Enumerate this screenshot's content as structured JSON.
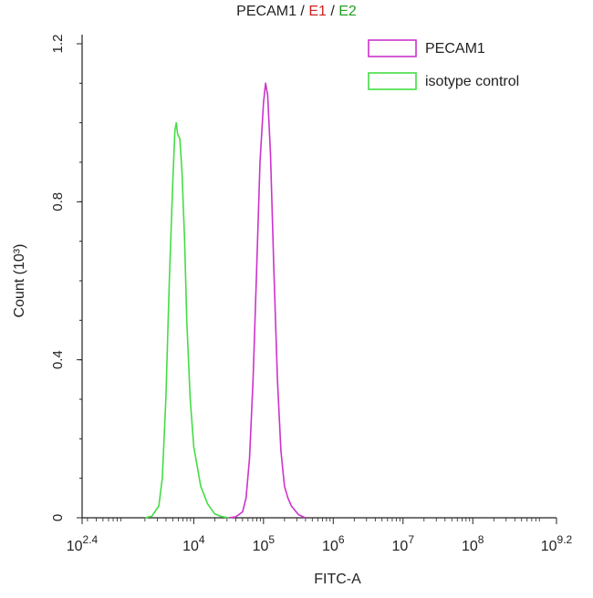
{
  "chart_data": {
    "type": "line",
    "title": {
      "main": "PECAM1",
      "sep1": " / ",
      "e1": "E1",
      "sep2": " / ",
      "e2": "E2"
    },
    "xlabel": "FITC-A",
    "ylabel": "Count (10³)",
    "x_scale": "log10",
    "xlim": [
      2.4,
      9.2
    ],
    "ylim": [
      0,
      1.2
    ],
    "x_ticks": [
      {
        "exp": 2.4,
        "base": "10",
        "sup": "2.4"
      },
      {
        "exp": 4,
        "base": "10",
        "sup": "4"
      },
      {
        "exp": 5,
        "base": "10",
        "sup": "5"
      },
      {
        "exp": 6,
        "base": "10",
        "sup": "6"
      },
      {
        "exp": 7,
        "base": "10",
        "sup": "7"
      },
      {
        "exp": 8,
        "base": "10",
        "sup": "8"
      },
      {
        "exp": 9.2,
        "base": "10",
        "sup": "9.2"
      }
    ],
    "y_ticks": [
      {
        "value": 0,
        "label": "0"
      },
      {
        "value": 0.4,
        "label": "0.4"
      },
      {
        "value": 0.8,
        "label": "0.8"
      },
      {
        "value": 1.2,
        "label": "1.2"
      }
    ],
    "legend_position": "top-right",
    "series": [
      {
        "name": "PECAM1",
        "color": "#cc33cc",
        "points": [
          [
            4.5,
            0
          ],
          [
            4.6,
            0.002
          ],
          [
            4.7,
            0.015
          ],
          [
            4.75,
            0.05
          ],
          [
            4.8,
            0.15
          ],
          [
            4.85,
            0.35
          ],
          [
            4.9,
            0.62
          ],
          [
            4.95,
            0.9
          ],
          [
            5.0,
            1.05
          ],
          [
            5.03,
            1.1
          ],
          [
            5.06,
            1.07
          ],
          [
            5.1,
            0.92
          ],
          [
            5.15,
            0.62
          ],
          [
            5.2,
            0.35
          ],
          [
            5.25,
            0.17
          ],
          [
            5.3,
            0.08
          ],
          [
            5.35,
            0.05
          ],
          [
            5.4,
            0.03
          ],
          [
            5.5,
            0.008
          ],
          [
            5.6,
            0
          ]
        ]
      },
      {
        "name": "isotype control",
        "color": "#44dd44",
        "points": [
          [
            3.3,
            0
          ],
          [
            3.4,
            0.004
          ],
          [
            3.5,
            0.03
          ],
          [
            3.55,
            0.1
          ],
          [
            3.6,
            0.3
          ],
          [
            3.65,
            0.6
          ],
          [
            3.7,
            0.85
          ],
          [
            3.73,
            0.98
          ],
          [
            3.75,
            1.0
          ],
          [
            3.77,
            0.97
          ],
          [
            3.8,
            0.96
          ],
          [
            3.83,
            0.88
          ],
          [
            3.87,
            0.7
          ],
          [
            3.9,
            0.5
          ],
          [
            3.95,
            0.3
          ],
          [
            4.0,
            0.18
          ],
          [
            4.1,
            0.08
          ],
          [
            4.2,
            0.035
          ],
          [
            4.3,
            0.01
          ],
          [
            4.4,
            0.003
          ],
          [
            4.5,
            0
          ]
        ]
      }
    ]
  }
}
